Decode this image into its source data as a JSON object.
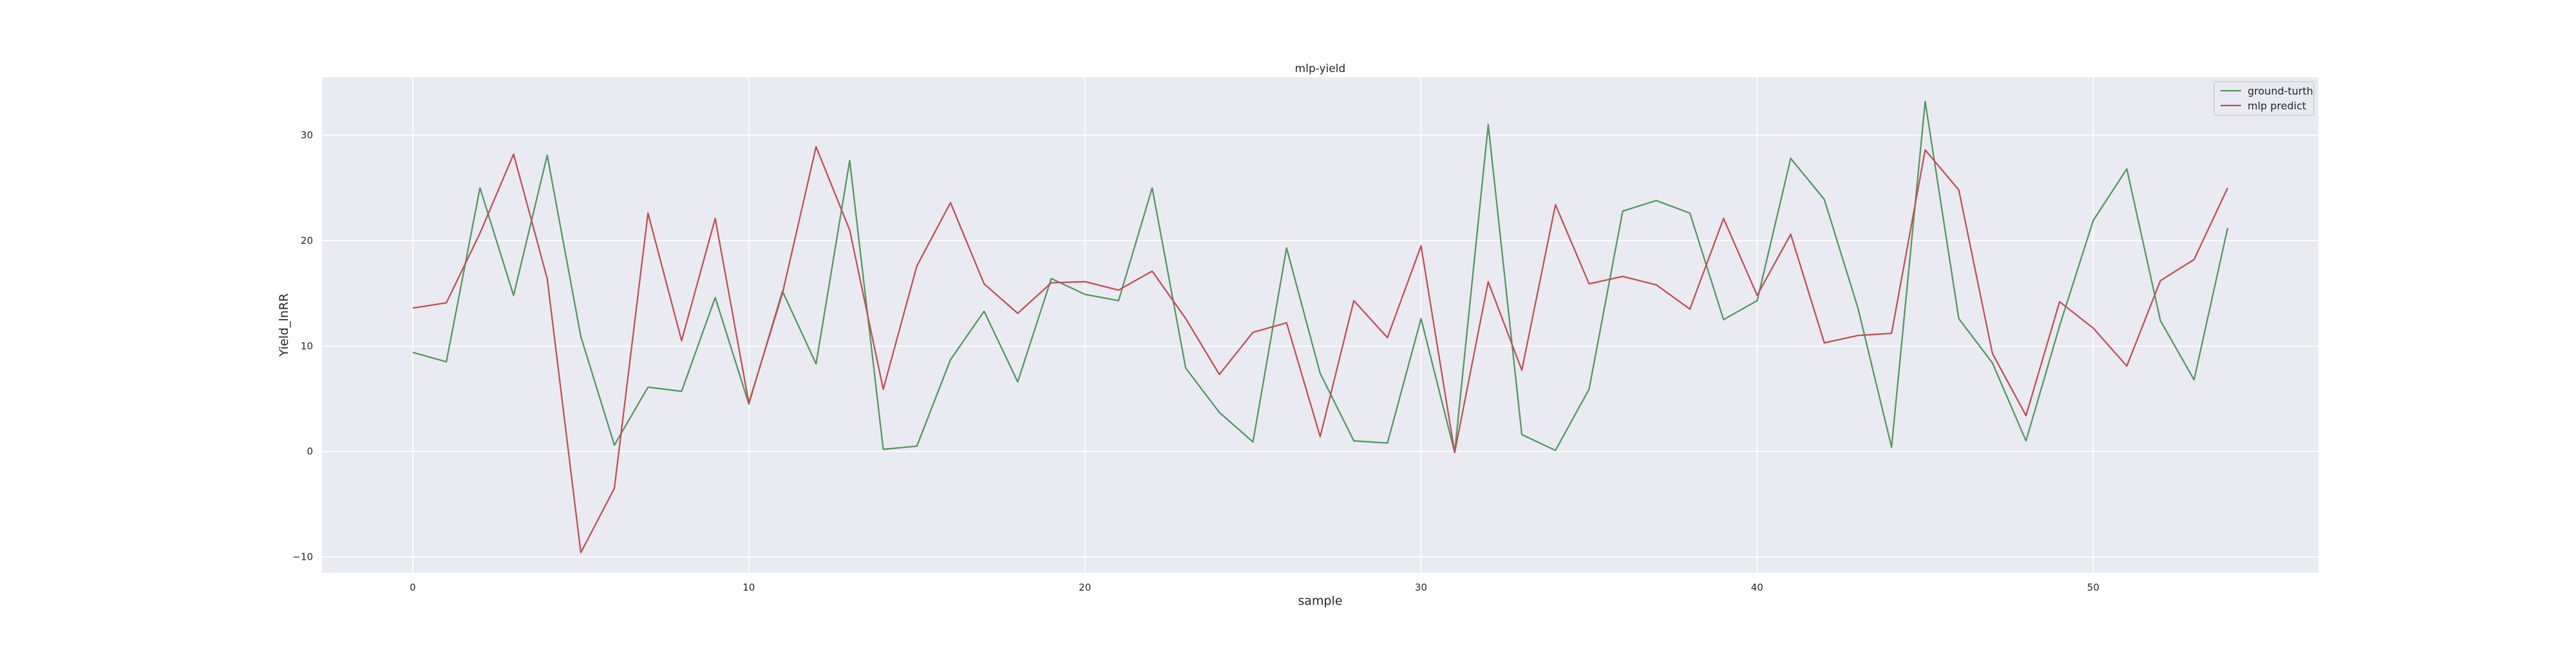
{
  "chart_data": {
    "type": "line",
    "title": "mlp-yield",
    "xlabel": "sample",
    "ylabel": "Yield_lnRR",
    "xlim": [
      -2.7,
      56.7
    ],
    "ylim": [
      -11.5,
      35.5
    ],
    "xticks": [
      0,
      10,
      20,
      30,
      40,
      50
    ],
    "yticks": [
      -10,
      0,
      10,
      20,
      30
    ],
    "xtick_labels": [
      "0",
      "10",
      "20",
      "30",
      "40",
      "50"
    ],
    "ytick_labels": [
      "−10",
      "0",
      "10",
      "20",
      "30"
    ],
    "grid": true,
    "legend": "top-right",
    "x": [
      0,
      1,
      2,
      3,
      4,
      5,
      6,
      7,
      8,
      9,
      10,
      11,
      12,
      13,
      14,
      15,
      16,
      17,
      18,
      19,
      20,
      21,
      22,
      23,
      24,
      25,
      26,
      27,
      28,
      29,
      30,
      31,
      32,
      33,
      34,
      35,
      36,
      37,
      38,
      39,
      40,
      41,
      42,
      43,
      44,
      45,
      46,
      47,
      48,
      49,
      50,
      51,
      52,
      53,
      54
    ],
    "series": [
      {
        "name": "ground-turth",
        "color": "#4f9a5f",
        "values": [
          9.4,
          8.5,
          25.0,
          14.8,
          28.1,
          10.9,
          0.6,
          6.1,
          5.7,
          14.6,
          4.5,
          15.2,
          8.3,
          27.6,
          0.2,
          0.5,
          8.7,
          13.3,
          6.6,
          16.4,
          14.9,
          14.3,
          25.0,
          7.9,
          3.7,
          0.9,
          19.3,
          7.4,
          1.0,
          0.8,
          12.6,
          -0.1,
          31.0,
          1.6,
          0.1,
          5.9,
          22.8,
          23.8,
          22.6,
          12.5,
          14.3,
          27.8,
          23.9,
          13.6,
          0.4,
          33.2,
          12.6,
          8.4,
          1.0,
          11.9,
          21.9,
          26.8,
          12.4,
          6.8,
          21.2
        ]
      },
      {
        "name": "mlp predict",
        "color": "#c44e52",
        "values": [
          13.6,
          14.1,
          20.7,
          28.2,
          16.4,
          -9.6,
          -3.5,
          22.6,
          10.5,
          22.1,
          4.6,
          15.0,
          28.9,
          21.0,
          5.9,
          17.6,
          23.6,
          15.9,
          13.1,
          16.0,
          16.1,
          15.3,
          17.1,
          12.6,
          7.3,
          11.3,
          12.2,
          1.4,
          14.3,
          10.8,
          19.5,
          -0.1,
          16.1,
          7.7,
          23.4,
          15.9,
          16.6,
          15.8,
          13.5,
          22.1,
          14.8,
          20.6,
          10.3,
          11.0,
          11.2,
          28.6,
          24.8,
          9.3,
          3.4,
          14.2,
          11.7,
          8.1,
          16.2,
          18.2,
          25.0
        ]
      }
    ]
  }
}
